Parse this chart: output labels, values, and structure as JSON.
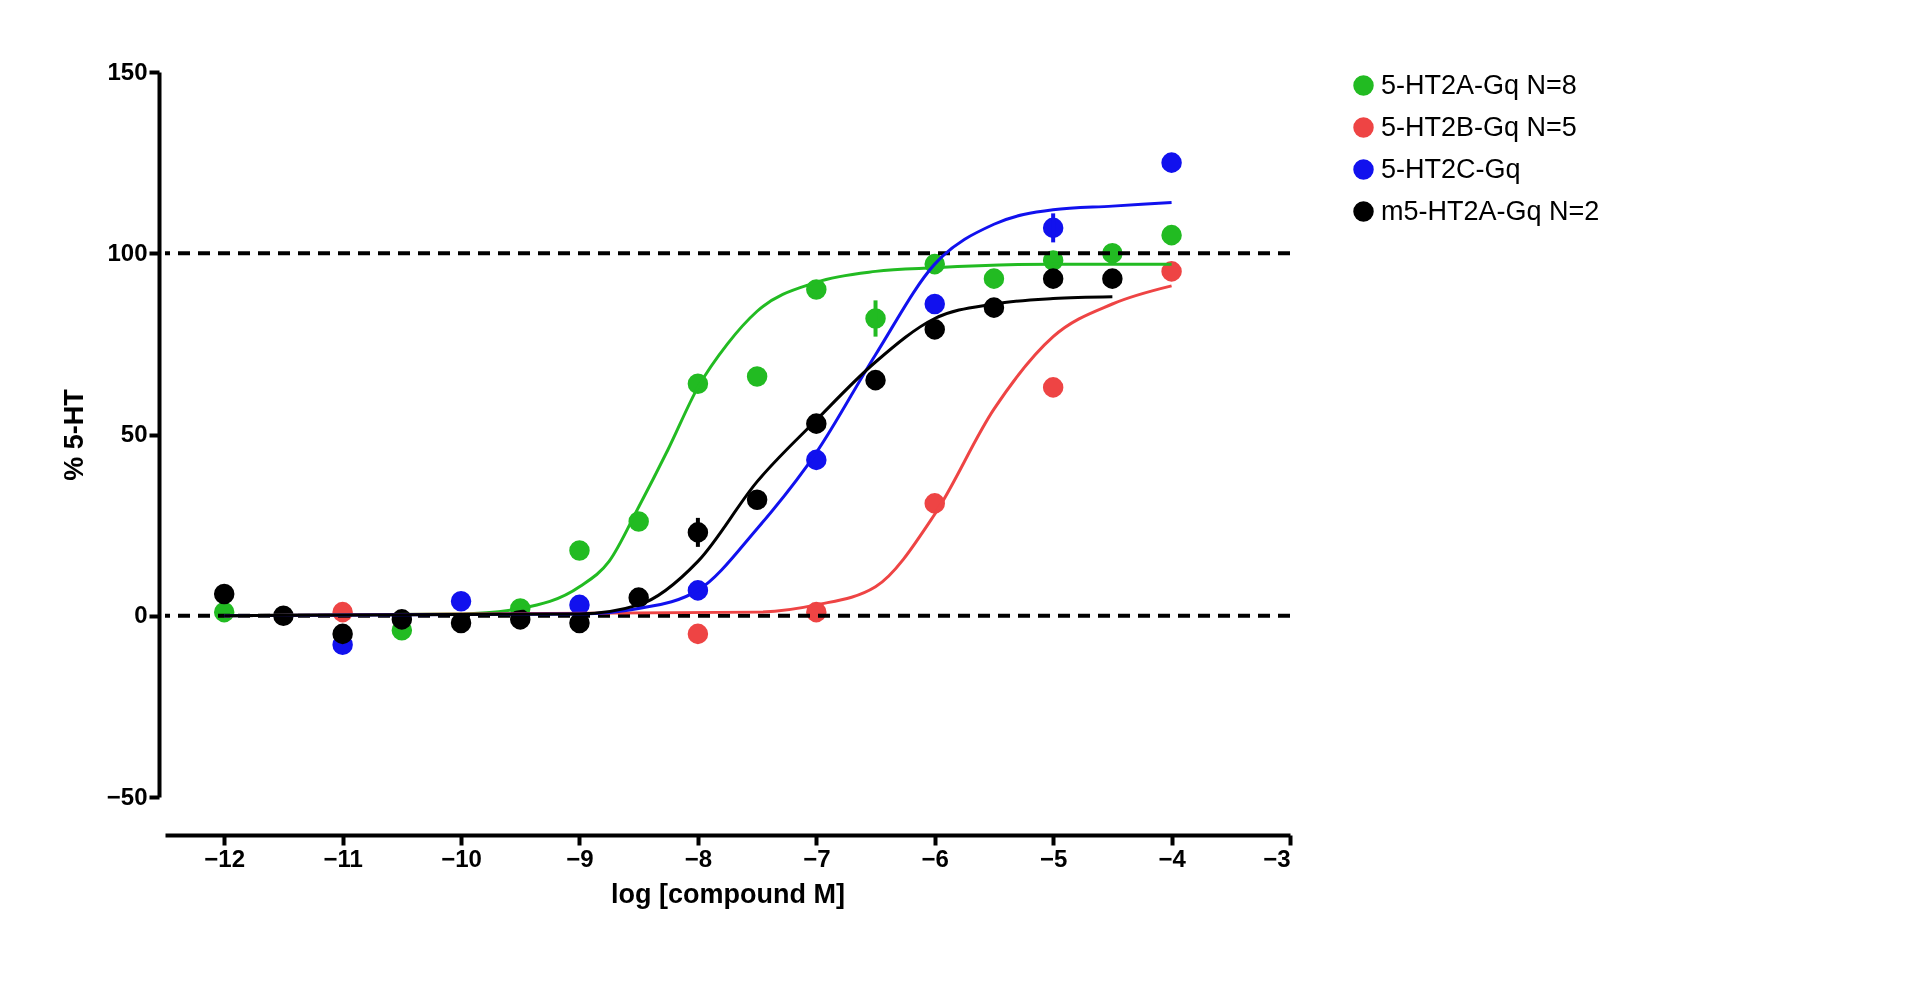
{
  "chart_data": {
    "type": "scatter",
    "xlabel": "log [compound M]",
    "ylabel": "% 5-HT",
    "xlim": [
      -12.5,
      -3
    ],
    "ylim": [
      -50,
      150
    ],
    "xticks": [
      -12,
      -11,
      -10,
      -9,
      -8,
      -7,
      -6,
      -5,
      -4,
      -3
    ],
    "yticks": [
      -50,
      0,
      50,
      100,
      150
    ],
    "grid": false,
    "legend": "right",
    "marker": "circle",
    "ref_lines": [
      {
        "axis": "y",
        "value": 0,
        "color": "#000000",
        "line_style": "dashed"
      },
      {
        "axis": "y",
        "value": 100,
        "color": "#000000",
        "line_style": "dashed"
      }
    ],
    "series": [
      {
        "name": "5-HT2A-Gq N=8",
        "color": "#22bb22",
        "x": [
          -12,
          -10.5,
          -9.5,
          -9,
          -8.5,
          -8,
          -7.5,
          -7,
          -6.5,
          -6,
          -5.5,
          -5,
          -4.5,
          -4
        ],
        "values": [
          1,
          -4,
          2,
          18,
          26,
          64,
          66,
          90,
          82,
          97,
          93,
          98,
          100,
          105
        ],
        "errors": [
          null,
          null,
          null,
          null,
          null,
          null,
          null,
          null,
          5,
          null,
          null,
          null,
          null,
          null
        ]
      },
      {
        "name": "5-HT2B-Gq N=5",
        "color": "#ee4444",
        "x": [
          -11,
          -8,
          -7,
          -6,
          -5,
          -4
        ],
        "values": [
          1,
          -5,
          1,
          31,
          63,
          95
        ]
      },
      {
        "name": "5-HT2C-Gq",
        "color": "#1111ee",
        "x": [
          -11,
          -10,
          -9,
          -8,
          -7,
          -6,
          -5,
          -4
        ],
        "values": [
          -8,
          4,
          3,
          7,
          43,
          86,
          107,
          125
        ],
        "errors": [
          null,
          null,
          null,
          null,
          null,
          null,
          4,
          null
        ]
      },
      {
        "name": "m5-HT2A-Gq N=2",
        "color": "#000000",
        "x": [
          -12,
          -11.5,
          -11,
          -10.5,
          -10,
          -9.5,
          -9,
          -8.5,
          -8,
          -7.5,
          -7,
          -6.5,
          -6,
          -5.5,
          -5,
          -4.5
        ],
        "values": [
          6,
          0,
          -5,
          -1,
          -2,
          -1,
          -2,
          5,
          23,
          32,
          53,
          65,
          79,
          85,
          93,
          93
        ],
        "errors": [
          null,
          null,
          null,
          null,
          null,
          null,
          null,
          null,
          4,
          null,
          null,
          null,
          null,
          null,
          null,
          null
        ]
      },
      {
        "type": "line",
        "marker": "none",
        "color": "#22bb22",
        "x": [
          -12,
          -10,
          -9.5,
          -9,
          -8.75,
          -8.5,
          -8.25,
          -8,
          -7.75,
          -7.5,
          -7,
          -6.5,
          -6,
          -5,
          -4
        ],
        "values": [
          0,
          0.5,
          2,
          8,
          15,
          30,
          46,
          63,
          75,
          84,
          92,
          95,
          96,
          97,
          97
        ]
      },
      {
        "type": "line",
        "marker": "none",
        "color": "#ee4444",
        "x": [
          -12,
          -7.5,
          -7,
          -6.5,
          -6,
          -5.5,
          -5,
          -4.5,
          -4
        ],
        "values": [
          0,
          1,
          3,
          8,
          28,
          57,
          77,
          86,
          91
        ]
      },
      {
        "type": "line",
        "marker": "none",
        "color": "#1111ee",
        "x": [
          -12,
          -9,
          -8.5,
          -8,
          -7.5,
          -7,
          -6.5,
          -6,
          -5.5,
          -5,
          -4.5,
          -4
        ],
        "values": [
          0,
          0.5,
          2,
          7,
          24,
          45,
          72,
          97,
          108,
          112,
          113,
          114
        ]
      },
      {
        "type": "line",
        "marker": "none",
        "color": "#000000",
        "x": [
          -12,
          -9,
          -8.5,
          -8,
          -7.5,
          -7,
          -6.5,
          -6,
          -5.5,
          -5,
          -4.5
        ],
        "values": [
          0,
          0.5,
          3,
          15,
          37,
          54,
          70,
          82,
          86,
          87.5,
          88
        ]
      }
    ]
  }
}
